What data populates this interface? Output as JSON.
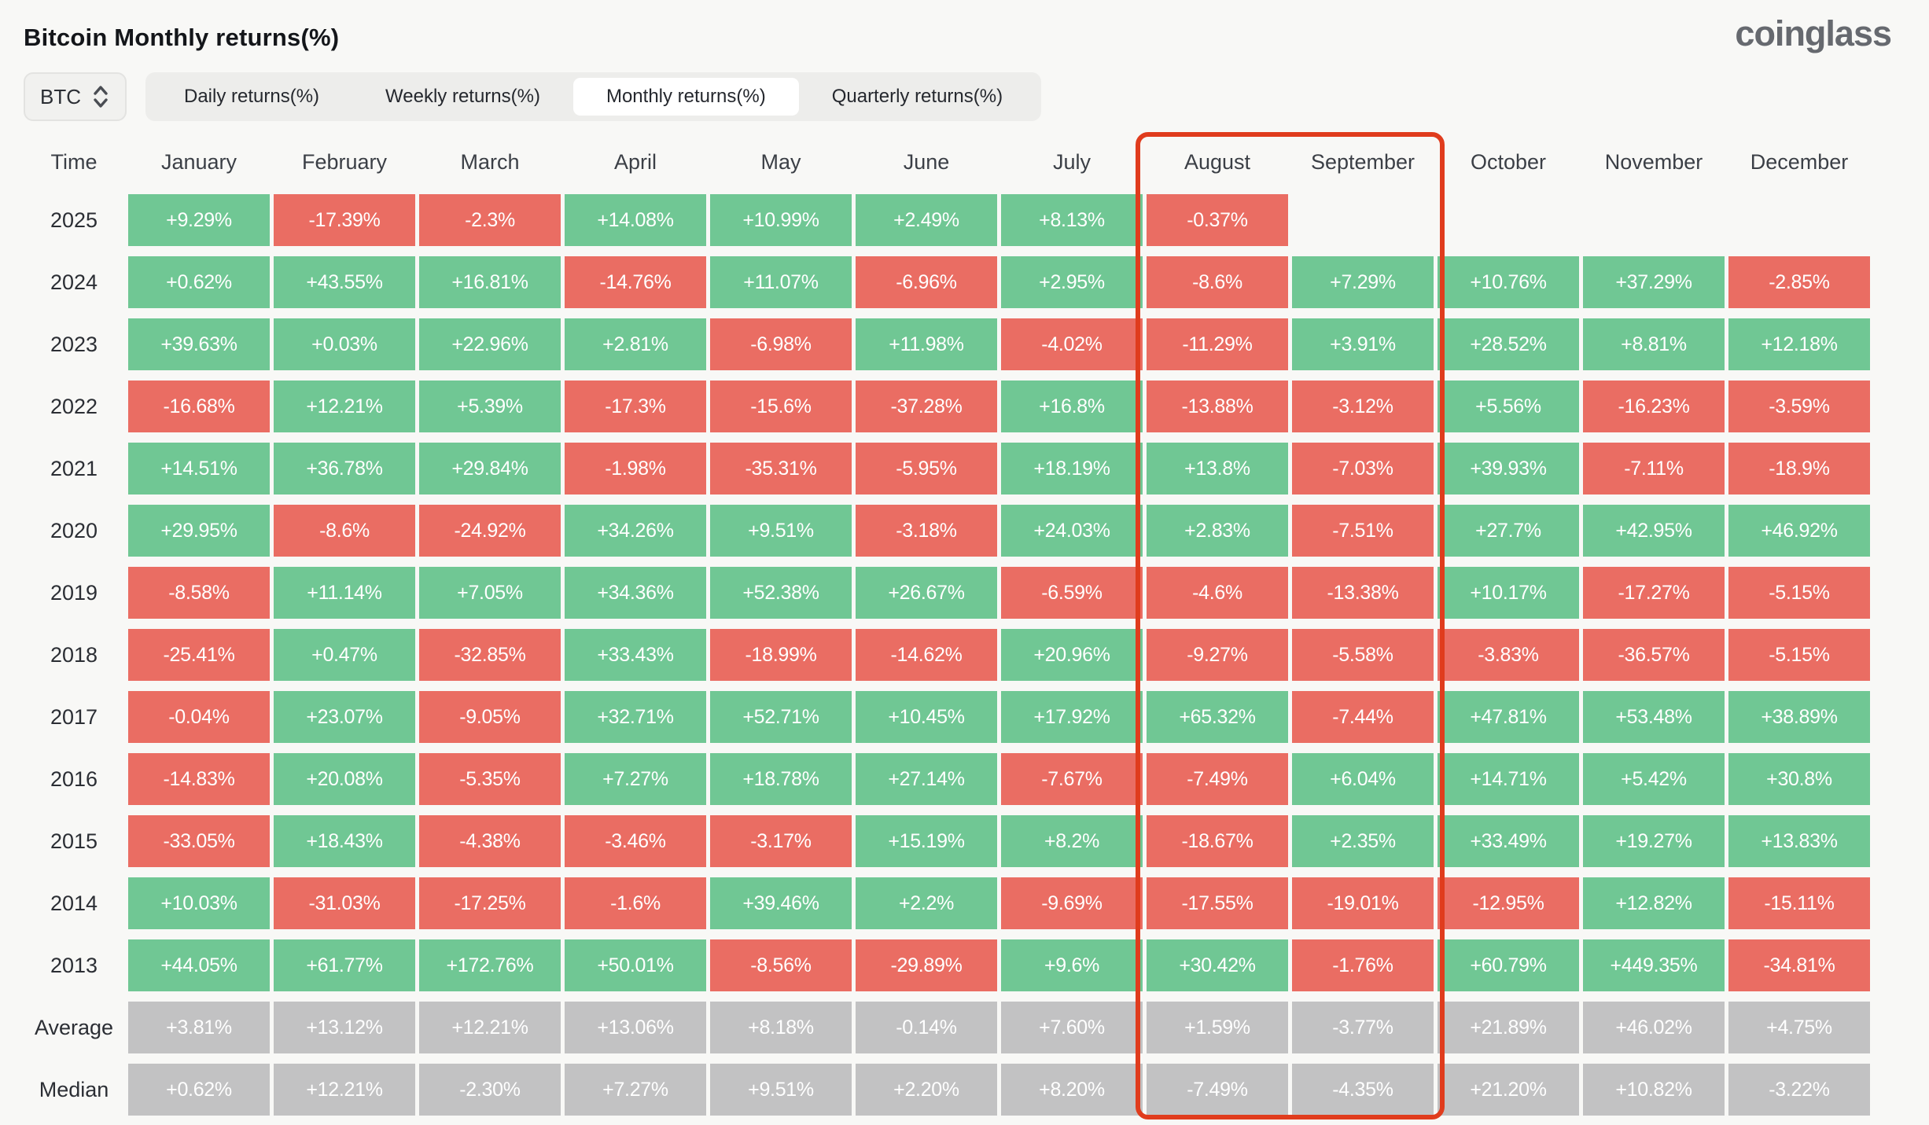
{
  "header": {
    "title": "Bitcoin Monthly returns(%)",
    "logo": "coinglass"
  },
  "controls": {
    "symbol": "BTC",
    "symbol_selector_icon": "up-down-chevron-icon",
    "tabs": [
      {
        "label": "Daily returns(%)",
        "active": false
      },
      {
        "label": "Weekly returns(%)",
        "active": false
      },
      {
        "label": "Monthly returns(%)",
        "active": true
      },
      {
        "label": "Quarterly returns(%)",
        "active": false
      }
    ]
  },
  "colors": {
    "positive": "#70c794",
    "negative": "#ea6d63",
    "summary": "#c2c2c3",
    "highlight": "#e03c1d",
    "cell_text": "#ffffff"
  },
  "table": {
    "corner_label": "Time",
    "months": [
      "January",
      "February",
      "March",
      "April",
      "May",
      "June",
      "July",
      "August",
      "September",
      "October",
      "November",
      "December"
    ],
    "highlighted_columns": [
      "August",
      "September"
    ],
    "rows": [
      {
        "label": "2025",
        "summary": false,
        "values": [
          "+9.29%",
          "-17.39%",
          "-2.3%",
          "+14.08%",
          "+10.99%",
          "+2.49%",
          "+8.13%",
          "-0.37%",
          "",
          "",
          "",
          ""
        ]
      },
      {
        "label": "2024",
        "summary": false,
        "values": [
          "+0.62%",
          "+43.55%",
          "+16.81%",
          "-14.76%",
          "+11.07%",
          "-6.96%",
          "+2.95%",
          "-8.6%",
          "+7.29%",
          "+10.76%",
          "+37.29%",
          "-2.85%"
        ]
      },
      {
        "label": "2023",
        "summary": false,
        "values": [
          "+39.63%",
          "+0.03%",
          "+22.96%",
          "+2.81%",
          "-6.98%",
          "+11.98%",
          "-4.02%",
          "-11.29%",
          "+3.91%",
          "+28.52%",
          "+8.81%",
          "+12.18%"
        ]
      },
      {
        "label": "2022",
        "summary": false,
        "values": [
          "-16.68%",
          "+12.21%",
          "+5.39%",
          "-17.3%",
          "-15.6%",
          "-37.28%",
          "+16.8%",
          "-13.88%",
          "-3.12%",
          "+5.56%",
          "-16.23%",
          "-3.59%"
        ]
      },
      {
        "label": "2021",
        "summary": false,
        "values": [
          "+14.51%",
          "+36.78%",
          "+29.84%",
          "-1.98%",
          "-35.31%",
          "-5.95%",
          "+18.19%",
          "+13.8%",
          "-7.03%",
          "+39.93%",
          "-7.11%",
          "-18.9%"
        ]
      },
      {
        "label": "2020",
        "summary": false,
        "values": [
          "+29.95%",
          "-8.6%",
          "-24.92%",
          "+34.26%",
          "+9.51%",
          "-3.18%",
          "+24.03%",
          "+2.83%",
          "-7.51%",
          "+27.7%",
          "+42.95%",
          "+46.92%"
        ]
      },
      {
        "label": "2019",
        "summary": false,
        "values": [
          "-8.58%",
          "+11.14%",
          "+7.05%",
          "+34.36%",
          "+52.38%",
          "+26.67%",
          "-6.59%",
          "-4.6%",
          "-13.38%",
          "+10.17%",
          "-17.27%",
          "-5.15%"
        ]
      },
      {
        "label": "2018",
        "summary": false,
        "values": [
          "-25.41%",
          "+0.47%",
          "-32.85%",
          "+33.43%",
          "-18.99%",
          "-14.62%",
          "+20.96%",
          "-9.27%",
          "-5.58%",
          "-3.83%",
          "-36.57%",
          "-5.15%"
        ]
      },
      {
        "label": "2017",
        "summary": false,
        "values": [
          "-0.04%",
          "+23.07%",
          "-9.05%",
          "+32.71%",
          "+52.71%",
          "+10.45%",
          "+17.92%",
          "+65.32%",
          "-7.44%",
          "+47.81%",
          "+53.48%",
          "+38.89%"
        ]
      },
      {
        "label": "2016",
        "summary": false,
        "values": [
          "-14.83%",
          "+20.08%",
          "-5.35%",
          "+7.27%",
          "+18.78%",
          "+27.14%",
          "-7.67%",
          "-7.49%",
          "+6.04%",
          "+14.71%",
          "+5.42%",
          "+30.8%"
        ]
      },
      {
        "label": "2015",
        "summary": false,
        "values": [
          "-33.05%",
          "+18.43%",
          "-4.38%",
          "-3.46%",
          "-3.17%",
          "+15.19%",
          "+8.2%",
          "-18.67%",
          "+2.35%",
          "+33.49%",
          "+19.27%",
          "+13.83%"
        ]
      },
      {
        "label": "2014",
        "summary": false,
        "values": [
          "+10.03%",
          "-31.03%",
          "-17.25%",
          "-1.6%",
          "+39.46%",
          "+2.2%",
          "-9.69%",
          "-17.55%",
          "-19.01%",
          "-12.95%",
          "+12.82%",
          "-15.11%"
        ]
      },
      {
        "label": "2013",
        "summary": false,
        "values": [
          "+44.05%",
          "+61.77%",
          "+172.76%",
          "+50.01%",
          "-8.56%",
          "-29.89%",
          "+9.6%",
          "+30.42%",
          "-1.76%",
          "+60.79%",
          "+449.35%",
          "-34.81%"
        ]
      },
      {
        "label": "Average",
        "summary": true,
        "values": [
          "+3.81%",
          "+13.12%",
          "+12.21%",
          "+13.06%",
          "+8.18%",
          "-0.14%",
          "+7.60%",
          "+1.59%",
          "-3.77%",
          "+21.89%",
          "+46.02%",
          "+4.75%"
        ]
      },
      {
        "label": "Median",
        "summary": true,
        "values": [
          "+0.62%",
          "+12.21%",
          "-2.30%",
          "+7.27%",
          "+9.51%",
          "+2.20%",
          "+8.20%",
          "-7.49%",
          "-4.35%",
          "+21.20%",
          "+10.82%",
          "-3.22%"
        ]
      }
    ]
  }
}
